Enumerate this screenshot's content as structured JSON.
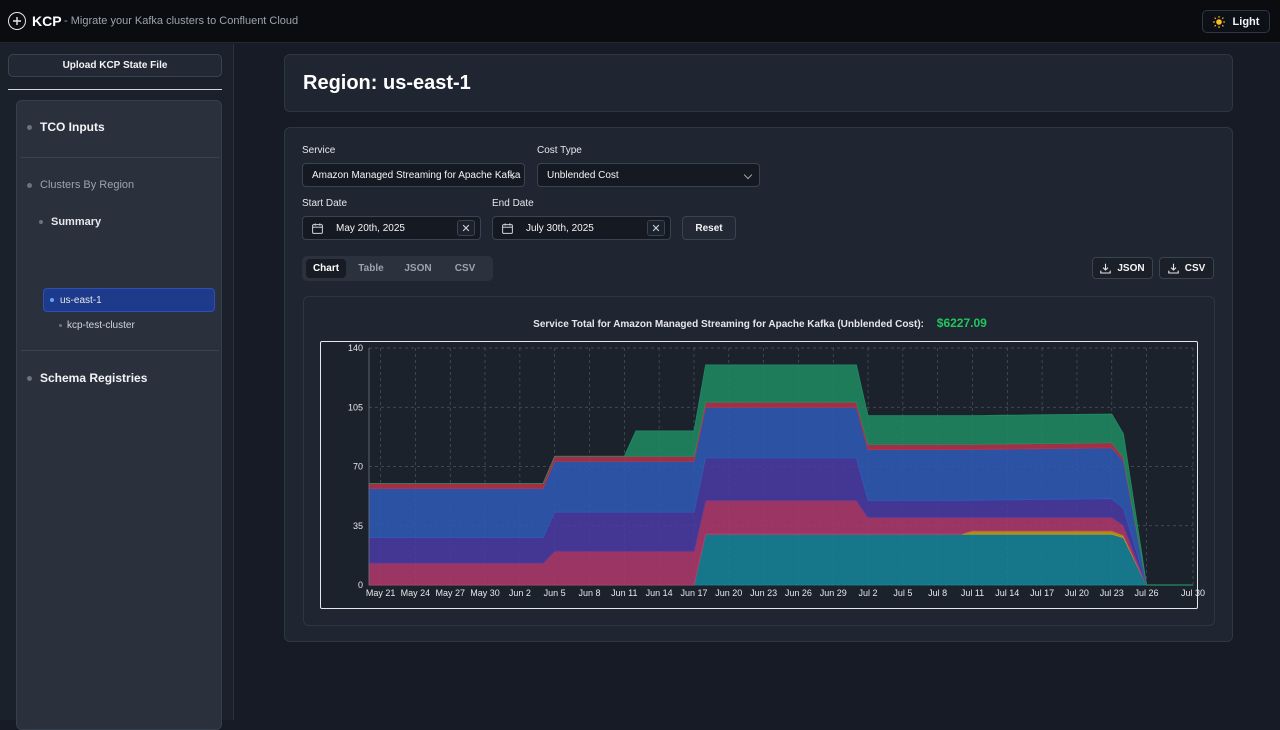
{
  "app": {
    "name": "KCP",
    "tagline": "- Migrate your Kafka clusters to Confluent Cloud",
    "theme_label": "Light"
  },
  "sidebar": {
    "upload_label": "Upload KCP State File",
    "items": {
      "tco": "TCO Inputs",
      "clusters_by_region": "Clusters By Region",
      "summary": "Summary",
      "region": "us-east-1",
      "cluster": "kcp-test-cluster",
      "schema_registries": "Schema Registries"
    }
  },
  "main": {
    "region_title": "Region: us-east-1",
    "service_label": "Service",
    "service_value": "Amazon Managed Streaming for Apache Kafka",
    "cost_type_label": "Cost Type",
    "cost_type_value": "Unblended Cost",
    "start_date_label": "Start Date",
    "start_date_value": "May 20th, 2025",
    "end_date_label": "End Date",
    "end_date_value": "July 30th, 2025",
    "reset_label": "Reset",
    "tabs": [
      "Chart",
      "Table",
      "JSON",
      "CSV"
    ],
    "active_tab": "Chart",
    "download_json_label": "JSON",
    "download_csv_label": "CSV",
    "chart_title": "Service Total for Amazon Managed Streaming for Apache Kafka (Unblended Cost):",
    "chart_total": "$6227.09"
  },
  "colors": {
    "accent": "#1e3a8a",
    "total_green": "#22c55e"
  },
  "chart_data": {
    "type": "area",
    "stacked": true,
    "ylim": [
      0,
      140
    ],
    "y_ticks": [
      0,
      35,
      70,
      105,
      140
    ],
    "x_tick_labels": [
      "May 21",
      "May 24",
      "May 27",
      "May 30",
      "Jun 2",
      "Jun 5",
      "Jun 8",
      "Jun 11",
      "Jun 14",
      "Jun 17",
      "Jun 20",
      "Jun 23",
      "Jun 26",
      "Jun 29",
      "Jul 2",
      "Jul 5",
      "Jul 8",
      "Jul 11",
      "Jul 14",
      "Jul 17",
      "Jul 20",
      "Jul 23",
      "Jul 26",
      "Jul 30"
    ],
    "grid": true,
    "series": [
      {
        "color": "#14869a",
        "points": [
          [
            "2025-05-20",
            0
          ],
          [
            "2025-06-17",
            0
          ],
          [
            "2025-06-18",
            30
          ],
          [
            "2025-07-23",
            30
          ],
          [
            "2025-07-24",
            28
          ],
          [
            "2025-07-26",
            0
          ],
          [
            "2025-07-30",
            0
          ]
        ]
      },
      {
        "color": "#c99a12",
        "points": [
          [
            "2025-05-20",
            0
          ],
          [
            "2025-07-10",
            0
          ],
          [
            "2025-07-11",
            2
          ],
          [
            "2025-07-23",
            2
          ],
          [
            "2025-07-26",
            0
          ],
          [
            "2025-07-30",
            0
          ]
        ]
      },
      {
        "color": "#b0386e",
        "points": [
          [
            "2025-05-20",
            13
          ],
          [
            "2025-06-04",
            13
          ],
          [
            "2025-06-05",
            20
          ],
          [
            "2025-06-17",
            20
          ],
          [
            "2025-06-18",
            20
          ],
          [
            "2025-07-01",
            20
          ],
          [
            "2025-07-02",
            10
          ],
          [
            "2025-07-10",
            10
          ],
          [
            "2025-07-11",
            8
          ],
          [
            "2025-07-23",
            8
          ],
          [
            "2025-07-24",
            6
          ],
          [
            "2025-07-26",
            0
          ],
          [
            "2025-07-30",
            0
          ]
        ]
      },
      {
        "color": "#4a3ba6",
        "points": [
          [
            "2025-05-20",
            15
          ],
          [
            "2025-06-04",
            15
          ],
          [
            "2025-06-05",
            23
          ],
          [
            "2025-06-17",
            23
          ],
          [
            "2025-06-18",
            25
          ],
          [
            "2025-07-01",
            25
          ],
          [
            "2025-07-02",
            10
          ],
          [
            "2025-07-10",
            10
          ],
          [
            "2025-07-23",
            11
          ],
          [
            "2025-07-24",
            10
          ],
          [
            "2025-07-26",
            0
          ],
          [
            "2025-07-30",
            0
          ]
        ]
      },
      {
        "color": "#2e5ab8",
        "points": [
          [
            "2025-05-20",
            29
          ],
          [
            "2025-06-04",
            29
          ],
          [
            "2025-06-05",
            30
          ],
          [
            "2025-06-17",
            30
          ],
          [
            "2025-06-18",
            30
          ],
          [
            "2025-07-01",
            30
          ],
          [
            "2025-07-02",
            30
          ],
          [
            "2025-07-10",
            30
          ],
          [
            "2025-07-23",
            30
          ],
          [
            "2025-07-24",
            28
          ],
          [
            "2025-07-26",
            0
          ],
          [
            "2025-07-30",
            0
          ]
        ]
      },
      {
        "color": "#b8324a",
        "points": [
          [
            "2025-05-20",
            3
          ],
          [
            "2025-06-04",
            3
          ],
          [
            "2025-06-05",
            3
          ],
          [
            "2025-06-17",
            3
          ],
          [
            "2025-06-18",
            3
          ],
          [
            "2025-07-01",
            3
          ],
          [
            "2025-07-02",
            3
          ],
          [
            "2025-07-10",
            3
          ],
          [
            "2025-07-23",
            3
          ],
          [
            "2025-07-24",
            2
          ],
          [
            "2025-07-26",
            0
          ],
          [
            "2025-07-30",
            0
          ]
        ]
      },
      {
        "color": "#1f8c63",
        "points": [
          [
            "2025-05-20",
            0
          ],
          [
            "2025-06-11",
            0
          ],
          [
            "2025-06-12",
            15
          ],
          [
            "2025-06-17",
            15
          ],
          [
            "2025-06-18",
            22
          ],
          [
            "2025-07-01",
            22
          ],
          [
            "2025-07-02",
            17
          ],
          [
            "2025-07-10",
            17
          ],
          [
            "2025-07-23",
            17
          ],
          [
            "2025-07-24",
            14
          ],
          [
            "2025-07-26",
            0
          ],
          [
            "2025-07-30",
            0
          ]
        ]
      }
    ]
  }
}
